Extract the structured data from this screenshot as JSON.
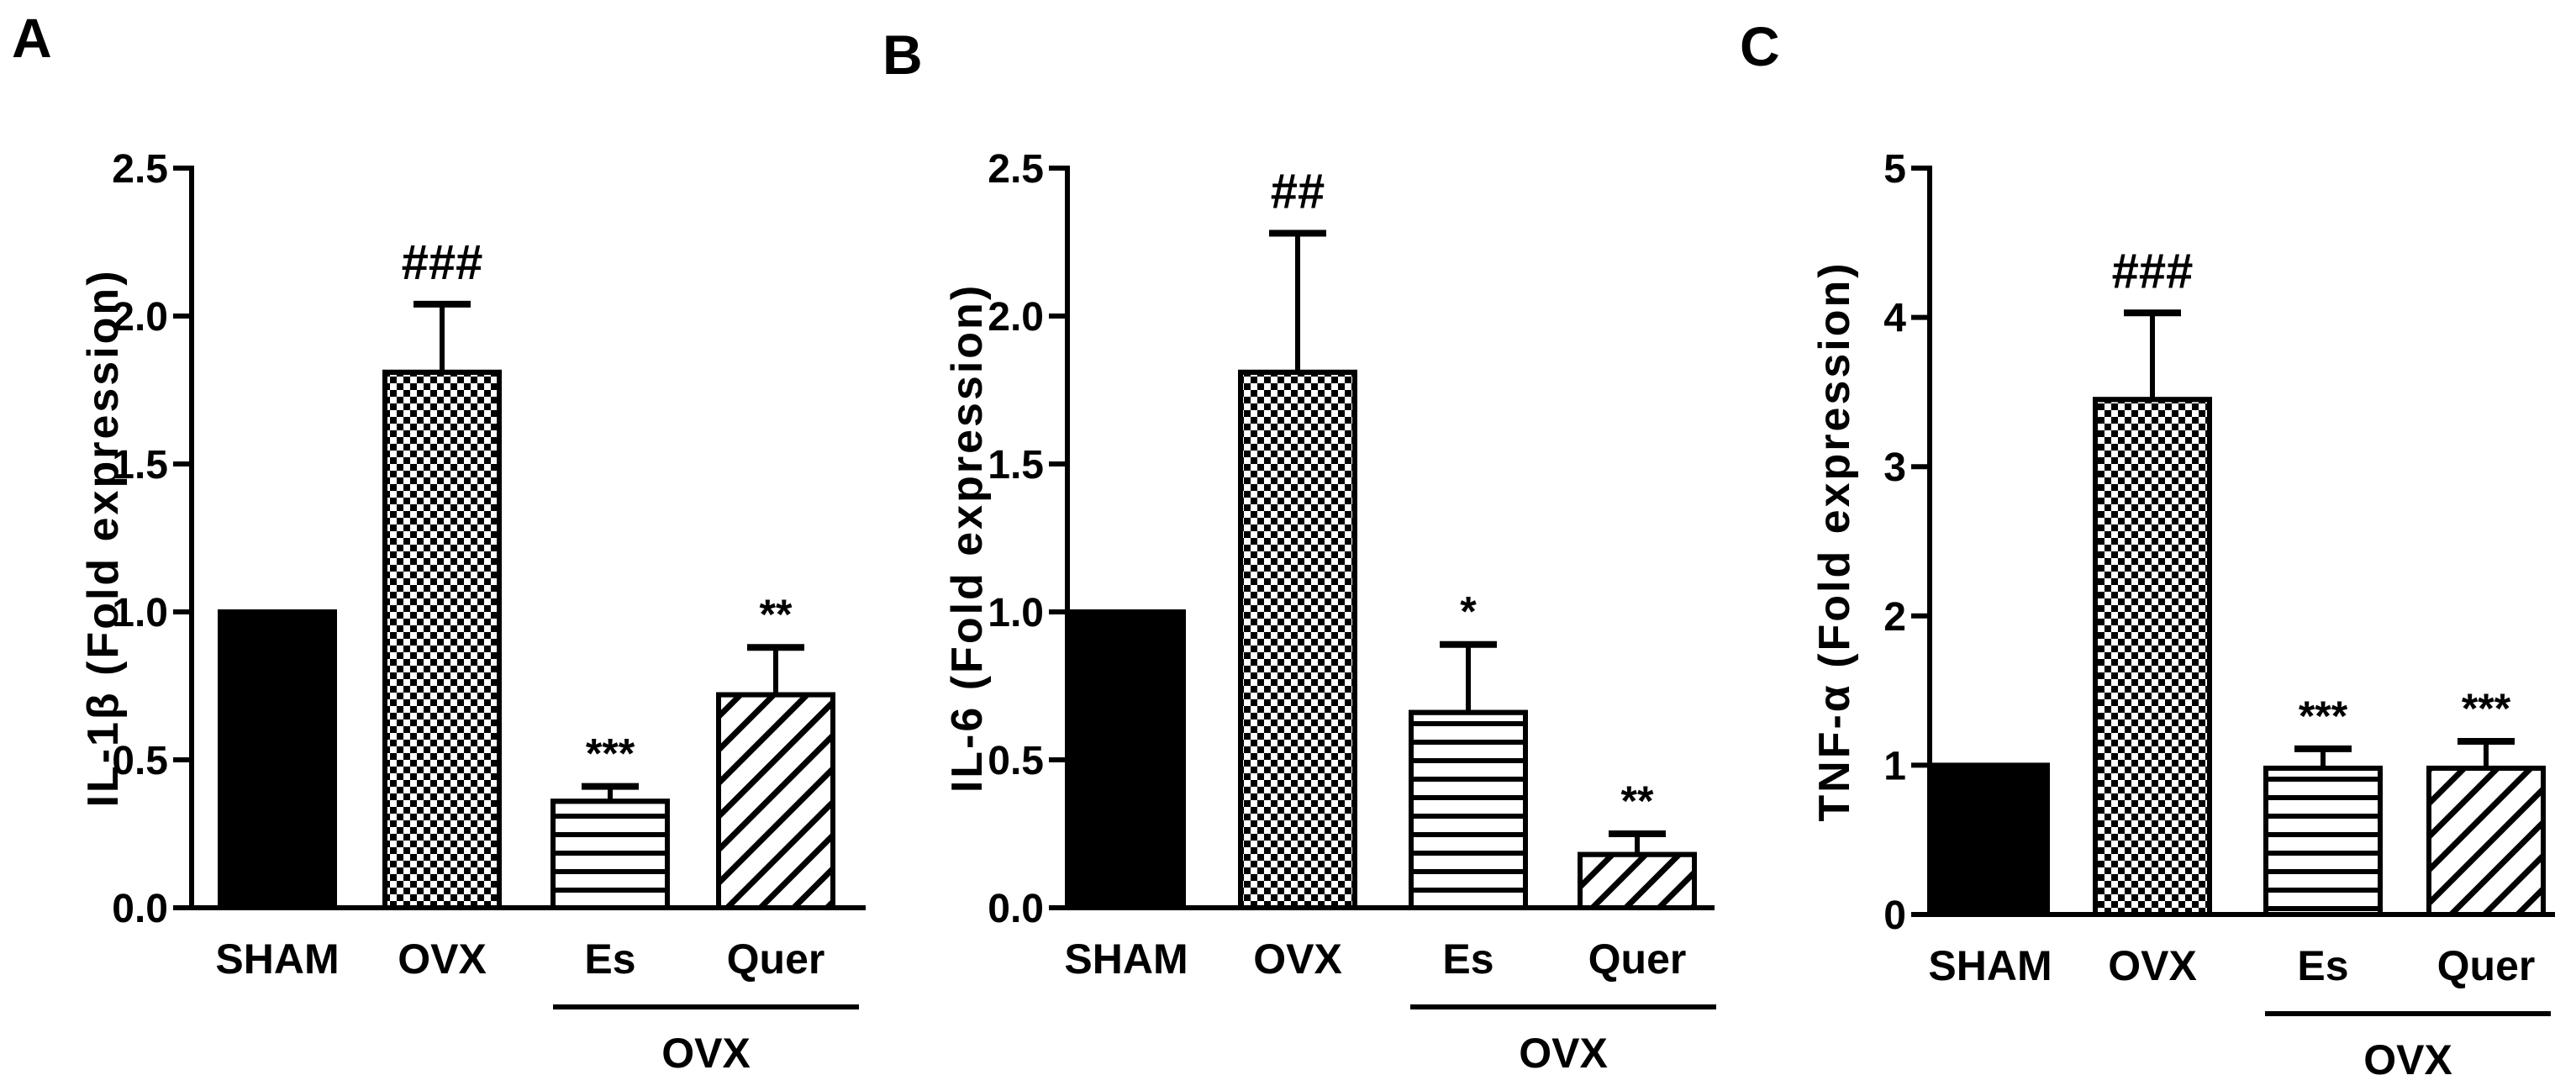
{
  "figure": {
    "colors": {
      "ink": "#000000",
      "background": "#ffffff"
    }
  },
  "chart_data": [
    {
      "panel": "A",
      "type": "bar",
      "ylabel": "IL-1β (Fold expression)",
      "categories": [
        "SHAM",
        "OVX",
        "Es",
        "Quer"
      ],
      "values": [
        1.0,
        1.81,
        0.36,
        0.72
      ],
      "errors": [
        0.0,
        0.23,
        0.05,
        0.16
      ],
      "significance": [
        "",
        "###",
        "***",
        "**"
      ],
      "patterns": [
        "solid",
        "checker",
        "hlines",
        "diagonal"
      ],
      "ylim": [
        0,
        2.5
      ],
      "ticks": [
        "0.0",
        "0.5",
        "1.0",
        "1.5",
        "2.0",
        "2.5"
      ],
      "tick_values": [
        0,
        0.5,
        1.0,
        1.5,
        2.0,
        2.5
      ],
      "group_label": "OVX"
    },
    {
      "panel": "B",
      "type": "bar",
      "ylabel": "IL-6 (Fold expression)",
      "categories": [
        "SHAM",
        "OVX",
        "Es",
        "Quer"
      ],
      "values": [
        1.0,
        1.81,
        0.66,
        0.18
      ],
      "errors": [
        0.0,
        0.47,
        0.23,
        0.07
      ],
      "significance": [
        "",
        "##",
        "*",
        "**"
      ],
      "patterns": [
        "solid",
        "checker",
        "hlines",
        "diagonal"
      ],
      "ylim": [
        0,
        2.5
      ],
      "ticks": [
        "0.0",
        "0.5",
        "1.0",
        "1.5",
        "2.0",
        "2.5"
      ],
      "tick_values": [
        0,
        0.5,
        1.0,
        1.5,
        2.0,
        2.5
      ],
      "group_label": "OVX"
    },
    {
      "panel": "C",
      "type": "bar",
      "ylabel": "TNF-α (Fold expression)",
      "categories": [
        "SHAM",
        "OVX",
        "Es",
        "Quer"
      ],
      "values": [
        1.0,
        3.45,
        0.98,
        0.98
      ],
      "errors": [
        0.0,
        0.58,
        0.13,
        0.18
      ],
      "significance": [
        "",
        "###",
        "***",
        "***"
      ],
      "patterns": [
        "solid",
        "checker",
        "hlines",
        "diagonal"
      ],
      "ylim": [
        0,
        5
      ],
      "ticks": [
        "0",
        "1",
        "2",
        "3",
        "4",
        "5"
      ],
      "tick_values": [
        0,
        1,
        2,
        3,
        4,
        5
      ],
      "group_label": "OVX"
    }
  ]
}
